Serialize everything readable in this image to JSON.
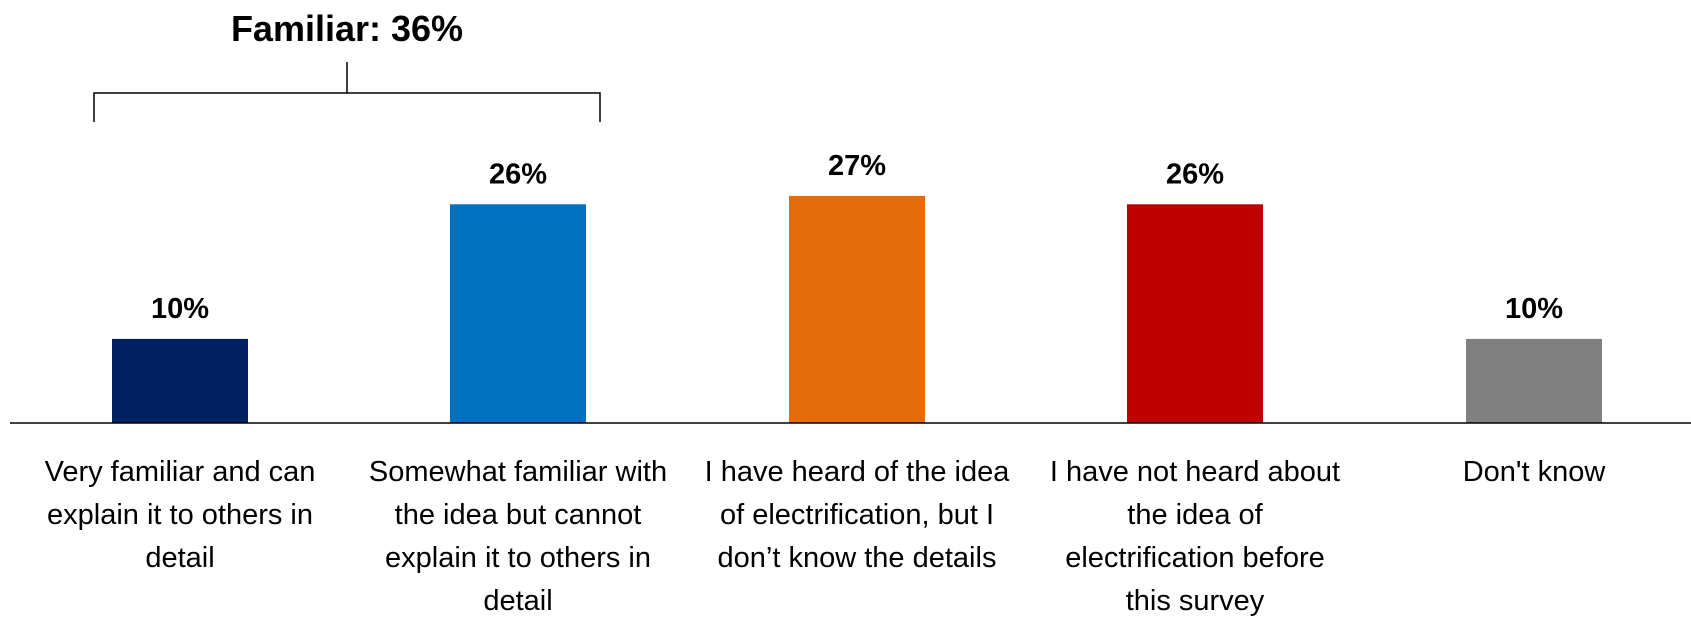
{
  "chart_data": {
    "type": "bar",
    "title": "Familiar: 36%",
    "categories": [
      "Very familiar and can explain it to others in detail",
      "Somewhat familiar with the idea but cannot explain it to others in detail",
      "I have heard of the idea of electrification, but I don’t know the details",
      "I have not heard about the idea of electrification before this survey",
      "Don't know"
    ],
    "values": [
      10,
      26,
      27,
      26,
      10
    ],
    "data_labels": [
      "10%",
      "26%",
      "27%",
      "26%",
      "10%"
    ],
    "colors": [
      "#002060",
      "#0070C0",
      "#E46C0A",
      "#C00000",
      "#808080"
    ],
    "ylim": [
      0,
      27
    ],
    "grid": false,
    "legend": "none",
    "bracket_label": "Familiar: 36%"
  }
}
